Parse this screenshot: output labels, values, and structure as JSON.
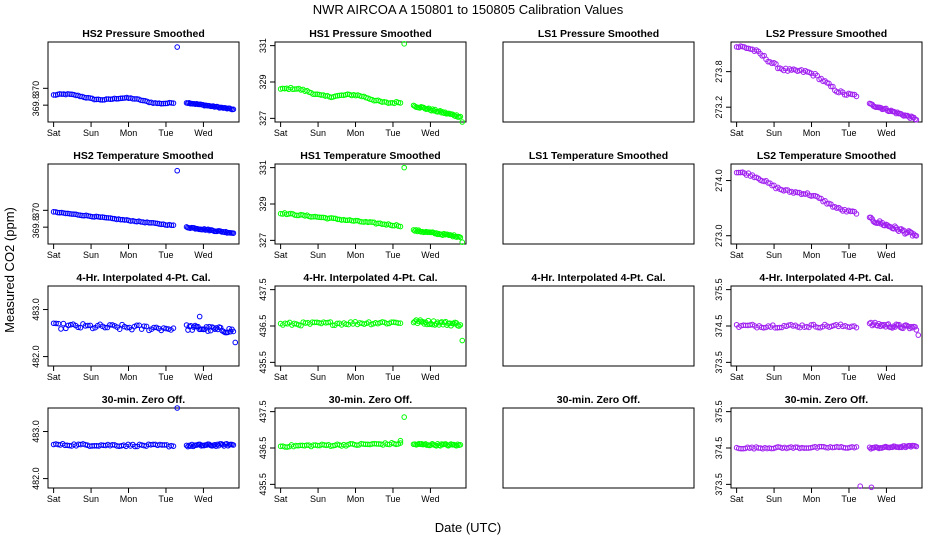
{
  "figure": {
    "title": "NWR   AIRCOA A   150801 to 150805   Calibration Values",
    "ylabel": "Measured CO2 (ppm)",
    "xlabel": "Date (UTC)"
  },
  "chart_data": {
    "type": "scatter",
    "layout": "4x4 grid of panels, row-major",
    "x_unit": "days since 2015-08-01 00:00 UTC",
    "x_ticks": {
      "values": [
        0,
        1,
        2,
        3,
        4
      ],
      "labels": [
        "Sat",
        "Sun",
        "Mon",
        "Tue",
        "Wed"
      ]
    },
    "x_range": [
      -0.15,
      4.95
    ],
    "panels": [
      {
        "title": "HS2 Pressure Smoothed",
        "color": "#0000ff",
        "ylim": [
          369.6,
          370.55
        ],
        "ticks": [
          369.8,
          370.0
        ],
        "tick_labels": [
          "369.8",
          "370"
        ],
        "segments": [
          {
            "x0": 0.0,
            "x1": 3.2,
            "y0": 369.92,
            "y1": 369.83,
            "n": 60,
            "wave": 0.02,
            "noise": 0.006
          },
          {
            "x0": 3.55,
            "x1": 4.8,
            "y0": 369.83,
            "y1": 369.75,
            "n": 38,
            "wave": 0.0,
            "noise": 0.006
          }
        ],
        "outliers": [
          {
            "x": 3.3,
            "y": 370.49
          }
        ]
      },
      {
        "title": "HS1 Pressure Smoothed",
        "color": "#00ff00",
        "ylim": [
          326.8,
          331.2
        ],
        "ticks": [
          327,
          329,
          331
        ],
        "tick_labels": [
          "327",
          "329",
          "331"
        ],
        "segments": [
          {
            "x0": 0.0,
            "x1": 3.2,
            "y0": 328.6,
            "y1": 327.9,
            "n": 60,
            "wave": 0.12,
            "noise": 0.05
          },
          {
            "x0": 3.55,
            "x1": 4.8,
            "y0": 327.7,
            "y1": 327.1,
            "n": 38,
            "wave": 0.0,
            "noise": 0.06
          }
        ],
        "outliers": [
          {
            "x": 3.3,
            "y": 331.1
          },
          {
            "x": 4.85,
            "y": 326.8
          }
        ]
      },
      {
        "title": "LS1 Pressure Smoothed",
        "color": "#000000",
        "ylim": [
          0,
          1
        ],
        "ticks": [],
        "tick_labels": [],
        "segments": [],
        "outliers": [],
        "show_x_ticks": false
      },
      {
        "title": "LS2 Pressure Smoothed",
        "color": "#a020f0",
        "ylim": [
          272.95,
          274.3
        ],
        "ticks": [
          273.2,
          273.8
        ],
        "tick_labels": [
          "273.2",
          "273.8"
        ],
        "segments": [
          {
            "x0": 0.0,
            "x1": 3.2,
            "y0": 274.22,
            "y1": 273.4,
            "n": 62,
            "wave": 0.06,
            "noise": 0.03
          },
          {
            "x0": 3.55,
            "x1": 4.8,
            "y0": 273.25,
            "y1": 273.0,
            "n": 38,
            "wave": 0.0,
            "noise": 0.02
          }
        ],
        "outliers": []
      },
      {
        "title": "HS2 Temperature Smoothed",
        "color": "#0000ff",
        "ylim": [
          369.6,
          370.55
        ],
        "ticks": [
          369.8,
          370.0
        ],
        "tick_labels": [
          "369.8",
          "370"
        ],
        "segments": [
          {
            "x0": 0.0,
            "x1": 3.2,
            "y0": 369.98,
            "y1": 369.82,
            "n": 60,
            "wave": 0.0,
            "noise": 0.005
          },
          {
            "x0": 3.55,
            "x1": 4.8,
            "y0": 369.8,
            "y1": 369.73,
            "n": 38,
            "wave": 0.0,
            "noise": 0.008
          }
        ],
        "outliers": [
          {
            "x": 3.3,
            "y": 370.47
          }
        ]
      },
      {
        "title": "HS1 Temperature Smoothed",
        "color": "#00ff00",
        "ylim": [
          326.8,
          331.2
        ],
        "ticks": [
          327,
          329,
          331
        ],
        "tick_labels": [
          "327",
          "329",
          "331"
        ],
        "segments": [
          {
            "x0": 0.0,
            "x1": 3.2,
            "y0": 328.5,
            "y1": 327.8,
            "n": 60,
            "wave": 0.0,
            "noise": 0.04
          },
          {
            "x0": 3.55,
            "x1": 4.8,
            "y0": 327.55,
            "y1": 327.2,
            "n": 38,
            "wave": 0.0,
            "noise": 0.05
          }
        ],
        "outliers": [
          {
            "x": 3.3,
            "y": 331.0
          },
          {
            "x": 4.85,
            "y": 326.9
          }
        ]
      },
      {
        "title": "LS1 Temperature Smoothed",
        "color": "#000000",
        "ylim": [
          0,
          1
        ],
        "ticks": [],
        "tick_labels": [],
        "segments": [],
        "outliers": [],
        "show_x_ticks": false
      },
      {
        "title": "LS2 Temperature Smoothed",
        "color": "#a020f0",
        "ylim": [
          272.85,
          274.3
        ],
        "ticks": [
          273.0,
          274.0
        ],
        "tick_labels": [
          "273.0",
          "274.0"
        ],
        "segments": [
          {
            "x0": 0.0,
            "x1": 3.2,
            "y0": 274.15,
            "y1": 273.42,
            "n": 62,
            "wave": 0.04,
            "noise": 0.025
          },
          {
            "x0": 3.55,
            "x1": 4.8,
            "y0": 273.3,
            "y1": 273.0,
            "n": 38,
            "wave": 0.0,
            "noise": 0.04
          }
        ],
        "outliers": []
      },
      {
        "title": "4-Hr. Interpolated 4-Pt. Cal.",
        "color": "#0000ff",
        "ylim": [
          481.8,
          483.5
        ],
        "ticks": [
          482.0,
          483.0
        ],
        "tick_labels": [
          "482.0",
          "483.0"
        ],
        "segments": [
          {
            "x0": 0.0,
            "x1": 3.2,
            "y0": 482.65,
            "y1": 482.6,
            "n": 50,
            "wave": 0.0,
            "noise": 0.06
          },
          {
            "x0": 3.55,
            "x1": 4.8,
            "y0": 482.62,
            "y1": 482.55,
            "n": 34,
            "wave": 0.0,
            "noise": 0.06
          }
        ],
        "outliers": [
          {
            "x": 4.85,
            "y": 482.3
          },
          {
            "x": 3.9,
            "y": 482.85
          }
        ]
      },
      {
        "title": "4-Hr. Interpolated 4-Pt. Cal.",
        "color": "#00ff00",
        "ylim": [
          435.4,
          437.6
        ],
        "ticks": [
          435.5,
          436.5,
          437.5
        ],
        "tick_labels": [
          "435.5",
          "436.5",
          "437.5"
        ],
        "segments": [
          {
            "x0": 0.0,
            "x1": 3.2,
            "y0": 436.55,
            "y1": 436.6,
            "n": 54,
            "wave": 0.0,
            "noise": 0.05
          },
          {
            "x0": 3.55,
            "x1": 4.8,
            "y0": 436.62,
            "y1": 436.55,
            "n": 36,
            "wave": 0.0,
            "noise": 0.06
          }
        ],
        "outliers": [
          {
            "x": 4.85,
            "y": 436.1
          }
        ]
      },
      {
        "title": "4-Hr. Interpolated 4-Pt. Cal.",
        "color": "#000000",
        "ylim": [
          0,
          1
        ],
        "ticks": [],
        "tick_labels": [],
        "segments": [],
        "outliers": [],
        "show_x_ticks": false
      },
      {
        "title": "4-Hr. Interpolated 4-Pt. Cal.",
        "color": "#a020f0",
        "ylim": [
          373.4,
          375.6
        ],
        "ticks": [
          373.5,
          374.5,
          375.5
        ],
        "tick_labels": [
          "373.5",
          "374.5",
          "375.5"
        ],
        "segments": [
          {
            "x0": 0.0,
            "x1": 3.2,
            "y0": 374.5,
            "y1": 374.5,
            "n": 54,
            "wave": 0.0,
            "noise": 0.05
          },
          {
            "x0": 3.55,
            "x1": 4.8,
            "y0": 374.55,
            "y1": 374.45,
            "n": 36,
            "wave": 0.0,
            "noise": 0.06
          }
        ],
        "outliers": [
          {
            "x": 4.85,
            "y": 374.25
          }
        ]
      },
      {
        "title": "30-min. Zero Off.",
        "color": "#0000ff",
        "ylim": [
          481.8,
          483.5
        ],
        "ticks": [
          482.0,
          483.0
        ],
        "tick_labels": [
          "482.0",
          "483.0"
        ],
        "segments": [
          {
            "x0": 0.0,
            "x1": 3.2,
            "y0": 482.72,
            "y1": 482.7,
            "n": 54,
            "wave": 0.0,
            "noise": 0.025
          },
          {
            "x0": 3.55,
            "x1": 4.8,
            "y0": 482.7,
            "y1": 482.72,
            "n": 36,
            "wave": 0.0,
            "noise": 0.025
          }
        ],
        "outliers": [
          {
            "x": 3.3,
            "y": 483.5
          }
        ]
      },
      {
        "title": "30-min. Zero Off.",
        "color": "#00ff00",
        "ylim": [
          435.4,
          437.6
        ],
        "ticks": [
          435.5,
          436.5,
          437.5
        ],
        "tick_labels": [
          "435.5",
          "436.5",
          "437.5"
        ],
        "segments": [
          {
            "x0": 0.0,
            "x1": 3.2,
            "y0": 436.55,
            "y1": 436.62,
            "n": 56,
            "wave": 0.0,
            "noise": 0.03
          },
          {
            "x0": 3.55,
            "x1": 4.8,
            "y0": 436.6,
            "y1": 436.58,
            "n": 36,
            "wave": 0.0,
            "noise": 0.03
          }
        ],
        "outliers": [
          {
            "x": 3.3,
            "y": 437.35
          },
          {
            "x": 3.2,
            "y": 436.7
          }
        ]
      },
      {
        "title": "30-min. Zero Off.",
        "color": "#000000",
        "ylim": [
          0,
          1
        ],
        "ticks": [],
        "tick_labels": [],
        "segments": [],
        "outliers": [],
        "show_x_ticks": false
      },
      {
        "title": "30-min. Zero Off.",
        "color": "#a020f0",
        "ylim": [
          373.4,
          375.6
        ],
        "ticks": [
          373.5,
          374.5,
          375.5
        ],
        "tick_labels": [
          "373.5",
          "374.5",
          "375.5"
        ],
        "segments": [
          {
            "x0": 0.0,
            "x1": 3.2,
            "y0": 374.5,
            "y1": 374.52,
            "n": 56,
            "wave": 0.0,
            "noise": 0.025
          },
          {
            "x0": 3.55,
            "x1": 4.8,
            "y0": 374.5,
            "y1": 374.55,
            "n": 36,
            "wave": 0.0,
            "noise": 0.025
          }
        ],
        "outliers": [
          {
            "x": 3.3,
            "y": 373.45
          },
          {
            "x": 3.6,
            "y": 373.42
          }
        ]
      }
    ]
  }
}
